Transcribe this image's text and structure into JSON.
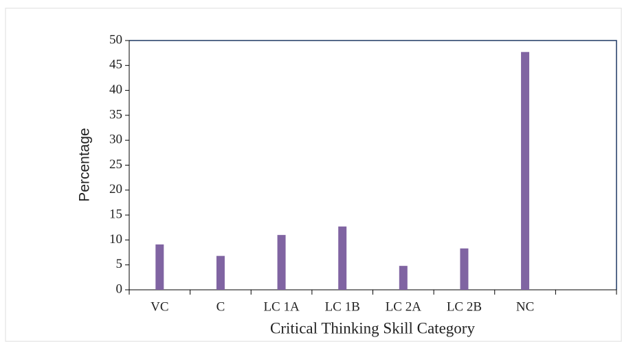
{
  "chart_data": {
    "type": "bar",
    "x_label": "Critical Thinking Skill Category",
    "y_label": "Percentage",
    "categories": [
      "VC",
      "C",
      "LC 1A",
      "LC 1B",
      "LC 2A",
      "LC 2B",
      "NC",
      null
    ],
    "values": [
      9.1,
      6.8,
      11.0,
      12.7,
      4.8,
      8.3,
      47.7,
      null
    ],
    "color": "#8064a2",
    "ylim": [
      0,
      50
    ],
    "yticks": [
      0,
      5,
      10,
      15,
      20,
      25,
      30,
      35,
      40,
      45,
      50
    ],
    "grid": false
  }
}
